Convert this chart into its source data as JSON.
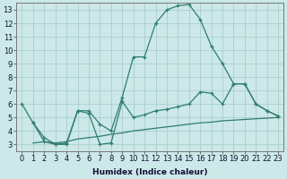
{
  "line1_x": [
    0,
    1,
    2,
    3,
    4,
    5,
    6,
    7,
    8,
    9,
    10,
    11,
    12,
    13,
    14,
    15,
    16,
    17,
    18,
    19,
    20,
    21,
    22,
    23
  ],
  "line1_y": [
    6.0,
    4.6,
    3.2,
    3.0,
    3.1,
    5.5,
    5.5,
    4.5,
    4.0,
    6.5,
    9.5,
    9.5,
    12.0,
    13.0,
    13.3,
    13.4,
    12.3,
    10.3,
    9.0,
    7.5,
    7.5,
    6.0,
    5.5,
    5.1
  ],
  "line2_x": [
    1,
    2,
    3,
    4,
    5,
    6,
    7,
    8,
    9,
    10,
    11,
    12,
    13,
    14,
    15,
    16,
    17,
    18,
    19,
    20,
    21,
    22,
    23
  ],
  "line2_y": [
    3.1,
    3.2,
    3.1,
    3.2,
    3.4,
    3.5,
    3.6,
    3.75,
    3.85,
    4.0,
    4.1,
    4.2,
    4.3,
    4.4,
    4.5,
    4.6,
    4.65,
    4.75,
    4.8,
    4.85,
    4.9,
    4.95,
    5.0
  ],
  "line3_x": [
    1,
    2,
    3,
    4,
    5,
    6,
    7,
    8,
    9,
    10,
    11,
    12,
    13,
    14,
    15,
    16,
    17,
    18,
    19,
    20,
    21,
    22,
    23
  ],
  "line3_y": [
    4.6,
    3.5,
    3.0,
    3.0,
    5.5,
    5.3,
    3.0,
    3.1,
    6.2,
    5.0,
    5.2,
    5.5,
    5.6,
    5.8,
    6.0,
    6.9,
    6.8,
    6.0,
    7.5,
    7.5,
    6.0,
    5.5,
    5.1
  ],
  "line_color": "#2e7d6e",
  "bg_color": "#cce8e8",
  "grid_color": "#aacece",
  "xlabel": "Humidex (Indice chaleur)",
  "xlim": [
    -0.5,
    23.5
  ],
  "ylim": [
    2.5,
    13.5
  ],
  "xticks": [
    0,
    1,
    2,
    3,
    4,
    5,
    6,
    7,
    8,
    9,
    10,
    11,
    12,
    13,
    14,
    15,
    16,
    17,
    18,
    19,
    20,
    21,
    22,
    23
  ],
  "yticks": [
    3,
    4,
    5,
    6,
    7,
    8,
    9,
    10,
    11,
    12,
    13
  ],
  "xlabel_fontsize": 6.5,
  "tick_fontsize": 6.0
}
